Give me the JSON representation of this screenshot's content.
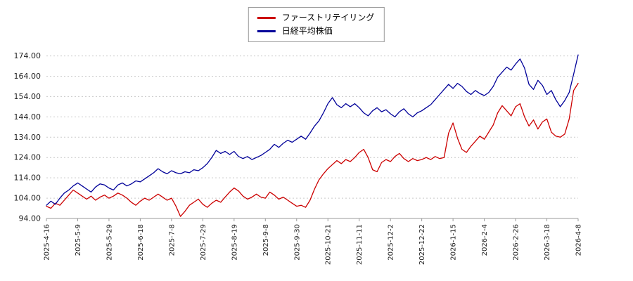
{
  "legend": {
    "items": [
      {
        "label": "ファーストリテイリング",
        "color": "#cc0000"
      },
      {
        "label": "日経平均株価",
        "color": "#000099"
      }
    ]
  },
  "chart_data": {
    "type": "line",
    "title": "",
    "xlabel": "",
    "ylabel": "",
    "grid": "horizontal-dotted",
    "legend_position": "top-center",
    "ylim": [
      94,
      178
    ],
    "y_ticks": [
      94,
      104,
      114,
      124,
      134,
      144,
      154,
      164,
      174
    ],
    "y_tick_format": "2-decimals",
    "x_labels": [
      "2025-4-16",
      "2025-5-9",
      "2025-5-29",
      "2025-6-18",
      "2025-7-8",
      "2025-7-29",
      "2025-8-19",
      "2025-9-8",
      "2025-9-30",
      "2025-10-21",
      "2025-11-11",
      "2025-12-2",
      "2025-12-22",
      "2026-1-15",
      "2026-2-4",
      "2026-2-26",
      "2026-3-18",
      "2026-4-8"
    ],
    "series": [
      {
        "name": "ファーストリテイリング",
        "color": "#cc0000",
        "values": [
          100.0,
          99.0,
          101.5,
          100.5,
          103.0,
          105.5,
          108.0,
          106.5,
          105.0,
          103.5,
          105.0,
          103.0,
          104.5,
          105.5,
          104.0,
          105.0,
          106.5,
          105.5,
          104.0,
          102.0,
          100.5,
          102.5,
          104.0,
          103.0,
          104.5,
          106.0,
          104.5,
          103.0,
          104.0,
          100.0,
          95.0,
          97.5,
          100.5,
          102.0,
          103.5,
          101.0,
          99.5,
          101.5,
          103.0,
          102.0,
          104.5,
          107.0,
          109.0,
          107.5,
          105.0,
          103.5,
          104.5,
          106.0,
          104.5,
          104.0,
          107.0,
          105.5,
          103.5,
          104.5,
          103.0,
          101.5,
          100.0,
          100.5,
          99.5,
          103.0,
          108.5,
          113.0,
          116.0,
          118.5,
          120.5,
          122.5,
          121.0,
          123.0,
          122.0,
          124.0,
          126.5,
          128.0,
          124.0,
          118.0,
          117.0,
          121.5,
          123.0,
          122.0,
          124.5,
          126.0,
          123.5,
          122.0,
          123.5,
          122.5,
          123.0,
          124.0,
          123.0,
          124.5,
          123.5,
          124.0,
          136.0,
          141.0,
          133.5,
          128.0,
          126.5,
          129.5,
          132.0,
          134.5,
          133.0,
          136.5,
          140.0,
          146.0,
          149.5,
          147.0,
          144.5,
          149.0,
          150.5,
          144.0,
          139.5,
          142.5,
          138.0,
          141.5,
          143.0,
          136.5,
          134.5,
          134.0,
          135.5,
          143.0,
          157.0,
          160.5
        ]
      },
      {
        "name": "日経平均株価",
        "color": "#000099",
        "values": [
          100.5,
          102.5,
          101.0,
          104.0,
          106.5,
          108.0,
          110.0,
          111.5,
          110.0,
          108.5,
          107.0,
          109.5,
          111.0,
          110.5,
          109.0,
          108.0,
          110.5,
          111.5,
          110.0,
          111.0,
          112.5,
          112.0,
          113.5,
          115.0,
          116.5,
          118.5,
          117.0,
          116.0,
          117.5,
          116.5,
          116.0,
          117.0,
          116.5,
          118.0,
          117.5,
          119.0,
          121.0,
          124.0,
          127.5,
          126.0,
          127.0,
          125.5,
          127.0,
          124.5,
          123.5,
          124.5,
          123.0,
          124.0,
          125.0,
          126.5,
          128.0,
          130.5,
          129.0,
          131.0,
          132.5,
          131.5,
          133.0,
          134.5,
          133.0,
          136.0,
          139.5,
          142.0,
          146.0,
          150.5,
          153.5,
          150.0,
          148.5,
          150.5,
          149.0,
          150.5,
          148.5,
          146.0,
          144.5,
          147.0,
          148.5,
          146.5,
          147.5,
          145.5,
          144.0,
          146.5,
          148.0,
          145.5,
          144.0,
          146.0,
          147.0,
          148.5,
          150.0,
          152.5,
          155.0,
          157.5,
          160.0,
          158.0,
          160.5,
          159.0,
          156.5,
          155.0,
          157.0,
          155.5,
          154.5,
          156.0,
          159.0,
          163.5,
          166.0,
          168.5,
          167.0,
          170.0,
          172.5,
          168.0,
          160.0,
          157.5,
          162.0,
          159.5,
          155.0,
          157.0,
          152.5,
          149.0,
          152.0,
          156.0,
          165.0,
          174.5
        ]
      }
    ]
  }
}
